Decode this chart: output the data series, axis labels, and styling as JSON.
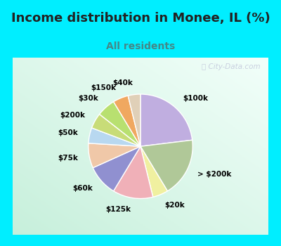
{
  "title": "Income distribution in Monee, IL (%)",
  "subtitle": "All residents",
  "bg_color": "#00eeff",
  "chart_bg_color": "#cce8dc",
  "watermark": "ⓘ City-Data.com",
  "slices": [
    {
      "label": "$100k",
      "value": 24,
      "color": "#c0aee0"
    },
    {
      "label": "> $200k",
      "value": 19,
      "color": "#b0c898"
    },
    {
      "label": "$20k",
      "value": 5,
      "color": "#f0f0a0"
    },
    {
      "label": "$125k",
      "value": 13,
      "color": "#f0b0b8"
    },
    {
      "label": "$60k",
      "value": 10,
      "color": "#9090d0"
    },
    {
      "label": "$75k",
      "value": 8,
      "color": "#f0c8a8"
    },
    {
      "label": "$50k",
      "value": 5,
      "color": "#b8d8f0"
    },
    {
      "label": "$200k",
      "value": 5,
      "color": "#c8dc78"
    },
    {
      "label": "$30k",
      "value": 6,
      "color": "#b8e070"
    },
    {
      "label": "$150k",
      "value": 5,
      "color": "#f0a860"
    },
    {
      "label": "$40k",
      "value": 4,
      "color": "#e0d0b8"
    }
  ],
  "start_angle": 90,
  "title_fontsize": 13,
  "subtitle_fontsize": 10,
  "label_fontsize": 7.5,
  "border_width": 7
}
